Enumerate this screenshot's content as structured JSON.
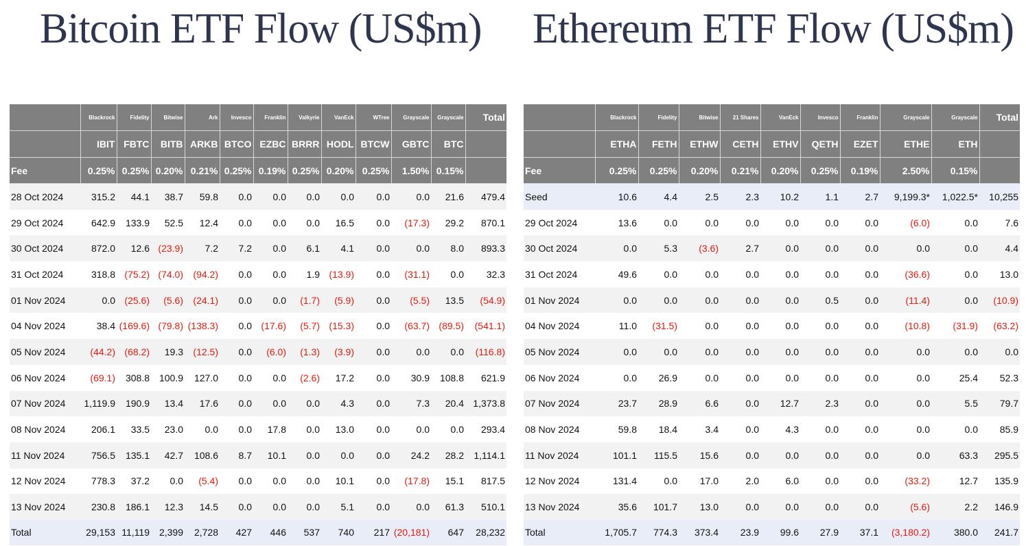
{
  "titles": {
    "btc": "Bitcoin ETF Flow (US$m)",
    "eth": "Ethereum ETF Flow (US$m)"
  },
  "colors": {
    "header_bg": "#808080",
    "negative": "#e8190c",
    "total_row_bg": "#e9edf7",
    "title": "#2e3550"
  },
  "btc": {
    "issuers": [
      "Blackrock",
      "Fidelity",
      "Bitwise",
      "Ark",
      "Invesco",
      "Franklin",
      "Valkyrie",
      "VanEck",
      "WTree",
      "Grayscale",
      "Grayscale"
    ],
    "total_label": "Total",
    "tickers": [
      "IBIT",
      "FBTC",
      "BITB",
      "ARKB",
      "BTCO",
      "EZBC",
      "BRRR",
      "HODL",
      "BTCW",
      "GBTC",
      "BTC"
    ],
    "fee_label": "Fee",
    "fees": [
      "0.25%",
      "0.25%",
      "0.20%",
      "0.21%",
      "0.25%",
      "0.19%",
      "0.25%",
      "0.20%",
      "0.25%",
      "1.50%",
      "0.15%"
    ],
    "rows": [
      {
        "date": "28 Oct 2024",
        "values": [
          "315.2",
          "44.1",
          "38.7",
          "59.8",
          "0.0",
          "0.0",
          "0.0",
          "0.0",
          "0.0",
          "0.0",
          "21.6",
          "479.4"
        ]
      },
      {
        "date": "29 Oct 2024",
        "values": [
          "642.9",
          "133.9",
          "52.5",
          "12.4",
          "0.0",
          "0.0",
          "0.0",
          "16.5",
          "0.0",
          "(17.3)",
          "29.2",
          "870.1"
        ]
      },
      {
        "date": "30 Oct 2024",
        "values": [
          "872.0",
          "12.6",
          "(23.9)",
          "7.2",
          "7.2",
          "0.0",
          "6.1",
          "4.1",
          "0.0",
          "0.0",
          "8.0",
          "893.3"
        ]
      },
      {
        "date": "31 Oct 2024",
        "values": [
          "318.8",
          "(75.2)",
          "(74.0)",
          "(94.2)",
          "0.0",
          "0.0",
          "1.9",
          "(13.9)",
          "0.0",
          "(31.1)",
          "0.0",
          "32.3"
        ]
      },
      {
        "date": "01 Nov 2024",
        "values": [
          "0.0",
          "(25.6)",
          "(5.6)",
          "(24.1)",
          "0.0",
          "0.0",
          "(1.7)",
          "(5.9)",
          "0.0",
          "(5.5)",
          "13.5",
          "(54.9)"
        ]
      },
      {
        "date": "04 Nov 2024",
        "values": [
          "38.4",
          "(169.6)",
          "(79.8)",
          "(138.3)",
          "0.0",
          "(17.6)",
          "(5.7)",
          "(15.3)",
          "0.0",
          "(63.7)",
          "(89.5)",
          "(541.1)"
        ]
      },
      {
        "date": "05 Nov 2024",
        "values": [
          "(44.2)",
          "(68.2)",
          "19.3",
          "(12.5)",
          "0.0",
          "(6.0)",
          "(1.3)",
          "(3.9)",
          "0.0",
          "0.0",
          "0.0",
          "(116.8)"
        ]
      },
      {
        "date": "06 Nov 2024",
        "values": [
          "(69.1)",
          "308.8",
          "100.9",
          "127.0",
          "0.0",
          "0.0",
          "(2.6)",
          "17.2",
          "0.0",
          "30.9",
          "108.8",
          "621.9"
        ]
      },
      {
        "date": "07 Nov 2024",
        "values": [
          "1,119.9",
          "190.9",
          "13.4",
          "17.6",
          "0.0",
          "0.0",
          "0.0",
          "4.3",
          "0.0",
          "7.3",
          "20.4",
          "1,373.8"
        ]
      },
      {
        "date": "08 Nov 2024",
        "values": [
          "206.1",
          "33.5",
          "23.0",
          "0.0",
          "0.0",
          "17.8",
          "0.0",
          "13.0",
          "0.0",
          "0.0",
          "0.0",
          "293.4"
        ]
      },
      {
        "date": "11 Nov 2024",
        "values": [
          "756.5",
          "135.1",
          "42.7",
          "108.6",
          "8.7",
          "10.1",
          "0.0",
          "0.0",
          "0.0",
          "24.2",
          "28.2",
          "1,114.1"
        ]
      },
      {
        "date": "12 Nov 2024",
        "values": [
          "778.3",
          "37.2",
          "0.0",
          "(5.4)",
          "0.0",
          "0.0",
          "0.0",
          "10.1",
          "0.0",
          "(17.8)",
          "15.1",
          "817.5"
        ]
      },
      {
        "date": "13 Nov 2024",
        "values": [
          "230.8",
          "186.1",
          "12.3",
          "14.5",
          "0.0",
          "0.0",
          "0.0",
          "5.1",
          "0.0",
          "0.0",
          "61.3",
          "510.1"
        ]
      }
    ],
    "total_row": {
      "label": "Total",
      "values": [
        "29,153",
        "11,119",
        "2,399",
        "2,728",
        "427",
        "446",
        "537",
        "740",
        "217",
        "(20,181)",
        "647",
        "28,232"
      ]
    }
  },
  "eth": {
    "issuers": [
      "Blackrock",
      "Fidelity",
      "Bitwise",
      "21 Shares",
      "VanEck",
      "Invesco",
      "Franklin",
      "Grayscale",
      "Grayscale"
    ],
    "total_label": "Total",
    "tickers": [
      "ETHA",
      "FETH",
      "ETHW",
      "CETH",
      "ETHV",
      "QETH",
      "EZET",
      "ETHE",
      "ETH"
    ],
    "fee_label": "Fee",
    "fees": [
      "0.25%",
      "0.25%",
      "0.20%",
      "0.21%",
      "0.20%",
      "0.25%",
      "0.19%",
      "2.50%",
      "0.15%"
    ],
    "rows": [
      {
        "date": "Seed",
        "values": [
          "10.6",
          "4.4",
          "2.5",
          "2.3",
          "10.2",
          "1.1",
          "2.7",
          "9,199.3*",
          "1,022.5*",
          "10,255"
        ]
      },
      {
        "date": "29 Oct 2024",
        "values": [
          "13.6",
          "0.0",
          "0.0",
          "0.0",
          "0.0",
          "0.0",
          "0.0",
          "(6.0)",
          "0.0",
          "7.6"
        ]
      },
      {
        "date": "30 Oct 2024",
        "values": [
          "0.0",
          "5.3",
          "(3.6)",
          "2.7",
          "0.0",
          "0.0",
          "0.0",
          "0.0",
          "0.0",
          "4.4"
        ]
      },
      {
        "date": "31 Oct 2024",
        "values": [
          "49.6",
          "0.0",
          "0.0",
          "0.0",
          "0.0",
          "0.0",
          "0.0",
          "(36.6)",
          "0.0",
          "13.0"
        ]
      },
      {
        "date": "01 Nov 2024",
        "values": [
          "0.0",
          "0.0",
          "0.0",
          "0.0",
          "0.0",
          "0.5",
          "0.0",
          "(11.4)",
          "0.0",
          "(10.9)"
        ]
      },
      {
        "date": "04 Nov 2024",
        "values": [
          "11.0",
          "(31.5)",
          "0.0",
          "0.0",
          "0.0",
          "0.0",
          "0.0",
          "(10.8)",
          "(31.9)",
          "(63.2)"
        ]
      },
      {
        "date": "05 Nov 2024",
        "values": [
          "0.0",
          "0.0",
          "0.0",
          "0.0",
          "0.0",
          "0.0",
          "0.0",
          "0.0",
          "0.0",
          "0.0"
        ]
      },
      {
        "date": "06 Nov 2024",
        "values": [
          "0.0",
          "26.9",
          "0.0",
          "0.0",
          "0.0",
          "0.0",
          "0.0",
          "0.0",
          "25.4",
          "52.3"
        ]
      },
      {
        "date": "07 Nov 2024",
        "values": [
          "23.7",
          "28.9",
          "6.6",
          "0.0",
          "12.7",
          "2.3",
          "0.0",
          "0.0",
          "5.5",
          "79.7"
        ]
      },
      {
        "date": "08 Nov 2024",
        "values": [
          "59.8",
          "18.4",
          "3.4",
          "0.0",
          "4.3",
          "0.0",
          "0.0",
          "0.0",
          "0.0",
          "85.9"
        ]
      },
      {
        "date": "11 Nov 2024",
        "values": [
          "101.1",
          "115.5",
          "15.6",
          "0.0",
          "0.0",
          "0.0",
          "0.0",
          "0.0",
          "63.3",
          "295.5"
        ]
      },
      {
        "date": "12 Nov 2024",
        "values": [
          "131.4",
          "0.0",
          "17.0",
          "2.0",
          "6.0",
          "0.0",
          "0.0",
          "(33.2)",
          "12.7",
          "135.9"
        ]
      },
      {
        "date": "13 Nov 2024",
        "values": [
          "35.6",
          "101.7",
          "13.0",
          "0.0",
          "0.0",
          "0.0",
          "0.0",
          "(5.6)",
          "2.2",
          "146.9"
        ]
      }
    ],
    "total_row": {
      "label": "Total",
      "values": [
        "1,705.7",
        "774.3",
        "373.4",
        "23.9",
        "99.6",
        "27.9",
        "37.1",
        "(3,180.2)",
        "380.0",
        "241.7"
      ]
    }
  }
}
